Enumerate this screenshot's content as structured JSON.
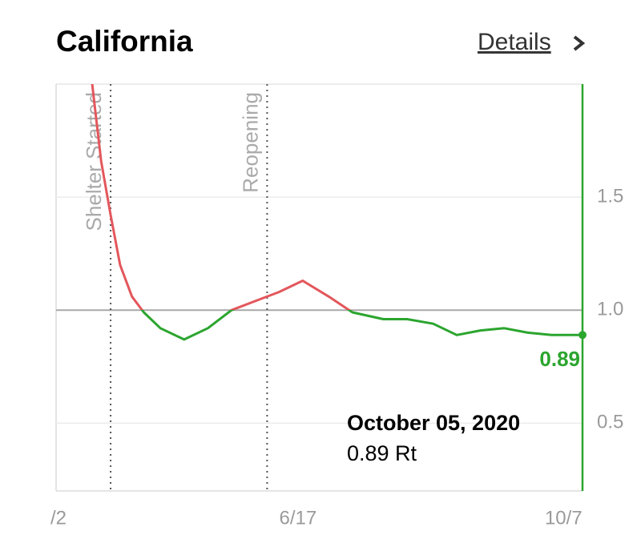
{
  "chart_data": {
    "type": "line",
    "title": "California",
    "link": "Details",
    "x": [
      15,
      19,
      23,
      27,
      32,
      37,
      44,
      54,
      64,
      74,
      84,
      94,
      104,
      115,
      125,
      138,
      148,
      159,
      169,
      179,
      189,
      199,
      209,
      222
    ],
    "values": [
      2.02,
      1.66,
      1.42,
      1.2,
      1.06,
      0.99,
      0.92,
      0.87,
      0.92,
      1.0,
      1.04,
      1.08,
      1.13,
      1.06,
      0.99,
      0.96,
      0.96,
      0.94,
      0.89,
      0.91,
      0.92,
      0.9,
      0.89,
      0.89
    ],
    "value_labels": [
      null,
      null,
      null,
      null,
      null,
      null,
      null,
      null,
      null,
      null,
      null,
      null,
      null,
      null,
      null,
      null,
      null,
      null,
      null,
      null,
      null,
      null,
      null,
      "0.89"
    ],
    "threshold": 1,
    "above_color": "#e3575c",
    "below_color": "#2ba52e",
    "xlim": [
      0,
      222
    ],
    "xticks": [
      {
        "value": 1,
        "label": "/2"
      },
      {
        "value": 102,
        "label": "6/17"
      },
      {
        "value": 214,
        "label": "10/7"
      }
    ],
    "ylim": [
      0.2,
      2.0
    ],
    "yticks": [
      0.5,
      {
        "value": 1,
        "label": "1.0"
      },
      1.5
    ],
    "grid": true,
    "annotations": [
      {
        "x": 23,
        "text": "Shelter Started"
      },
      {
        "x": 89,
        "text": "Reopening"
      }
    ],
    "tooltip": {
      "date": "October 05, 2020",
      "text": "0.89 Rt"
    }
  }
}
